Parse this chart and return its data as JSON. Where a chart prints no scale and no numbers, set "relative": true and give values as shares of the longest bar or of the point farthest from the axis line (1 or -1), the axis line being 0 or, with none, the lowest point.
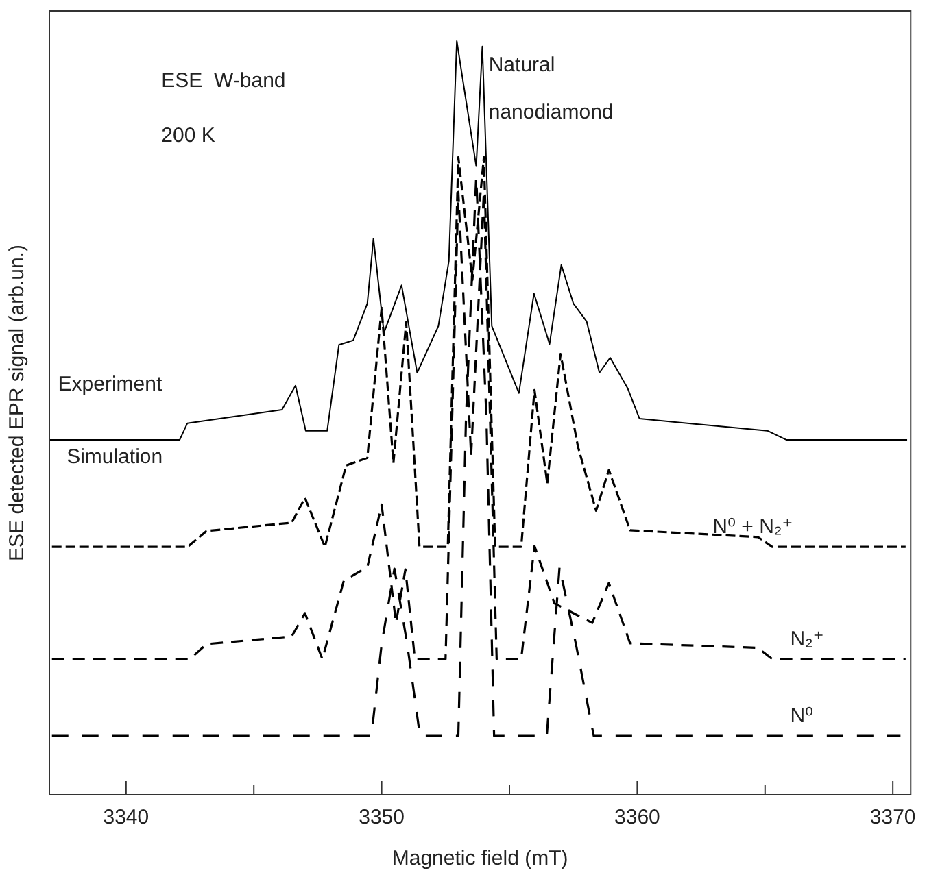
{
  "chart_data": {
    "type": "line",
    "xlabel": "Magnetic field (mT)",
    "ylabel": "ESE detected EPR signal (arb.un.)",
    "relative": true,
    "legend": false,
    "grid": false,
    "marker": "none",
    "xlim": [
      3337,
      3370.7
    ],
    "xticks": [
      3340,
      {
        "value": 3345,
        "label": null
      },
      3350,
      {
        "value": 3355,
        "label": null
      },
      3360,
      {
        "value": 3365,
        "label": null
      },
      3370
    ],
    "annotations": [
      "ESE  W-band",
      "200 K",
      "Natural",
      "nanodiamond",
      "Simulation"
    ],
    "series": [
      {
        "name": "Experiment",
        "color": "#000000",
        "line_style": "solid",
        "x": [
          3337.0,
          3342.1,
          3342.4,
          3346.1,
          3346.63,
          3347.03,
          3347.87,
          3348.33,
          3348.89,
          3349.44,
          3349.68,
          3350.09,
          3350.78,
          3351.39,
          3352.22,
          3352.63,
          3352.94,
          3353.7,
          3353.94,
          3354.31,
          3355.37,
          3355.96,
          3356.57,
          3357.03,
          3357.5,
          3358.02,
          3358.52,
          3358.94,
          3359.63,
          3360.09,
          3365.09,
          3365.83,
          3370.56
        ],
        "values": [
          0.471,
          0.471,
          0.493,
          0.511,
          0.543,
          0.483,
          0.483,
          0.597,
          0.603,
          0.652,
          0.738,
          0.613,
          0.676,
          0.56,
          0.622,
          0.708,
          1,
          0.834,
          0.993,
          0.622,
          0.533,
          0.665,
          0.598,
          0.703,
          0.652,
          0.628,
          0.56,
          0.58,
          0.539,
          0.499,
          0.483,
          0.471,
          0.471
        ]
      },
      {
        "name": "N⁰ + N₂⁺",
        "color": "#000000",
        "line_style": "dashed",
        "x": [
          3337.1,
          3342.41,
          3343.15,
          3346.48,
          3347.0,
          3347.78,
          3348.61,
          3349.44,
          3350.0,
          3350.46,
          3350.96,
          3351.48,
          3352.59,
          3353.0,
          3353.55,
          3354.0,
          3354.44,
          3355.46,
          3355.98,
          3356.48,
          3357.0,
          3357.68,
          3358.39,
          3358.89,
          3359.72,
          3364.72,
          3365.28,
          3370.5
        ],
        "values": [
          0.329,
          0.329,
          0.35,
          0.361,
          0.394,
          0.329,
          0.437,
          0.447,
          0.646,
          0.44,
          0.627,
          0.329,
          0.329,
          0.846,
          0.683,
          0.846,
          0.329,
          0.329,
          0.537,
          0.413,
          0.585,
          0.462,
          0.377,
          0.431,
          0.351,
          0.342,
          0.329,
          0.329
        ]
      },
      {
        "name": "N₂⁺",
        "color": "#000000",
        "line_style": "dashed",
        "x": [
          3337.1,
          3342.5,
          3343.15,
          3346.48,
          3347.0,
          3347.68,
          3348.52,
          3349.44,
          3350.0,
          3350.56,
          3350.93,
          3351.3,
          3352.5,
          3353.0,
          3353.5,
          3354.0,
          3354.5,
          3355.46,
          3355.98,
          3356.76,
          3358.24,
          3358.89,
          3359.72,
          3364.72,
          3365.28,
          3370.5
        ],
        "values": [
          0.18,
          0.18,
          0.2,
          0.21,
          0.241,
          0.18,
          0.284,
          0.302,
          0.385,
          0.228,
          0.299,
          0.18,
          0.18,
          0.8,
          0.45,
          0.8,
          0.18,
          0.18,
          0.33,
          0.254,
          0.228,
          0.281,
          0.201,
          0.195,
          0.18,
          0.18
        ]
      },
      {
        "name": "N⁰",
        "color": "#000000",
        "line_style": "dashed",
        "x": [
          3337.1,
          3349.6,
          3350.0,
          3350.5,
          3351.0,
          3351.5,
          3353.0,
          3353.3,
          3353.7,
          3354.1,
          3354.4,
          3356.46,
          3356.96,
          3357.6,
          3358.3,
          3370.3
        ],
        "values": [
          0.078,
          0.078,
          0.2,
          0.3,
          0.2,
          0.078,
          0.078,
          0.5,
          0.82,
          0.5,
          0.078,
          0.078,
          0.302,
          0.2,
          0.078,
          0.078
        ]
      }
    ]
  }
}
